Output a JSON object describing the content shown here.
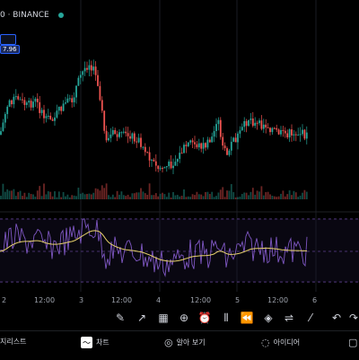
{
  "header": {
    "symbol_text": "0 · BINANCE",
    "badge_value": "7.96"
  },
  "toolbar": {
    "tools": [
      {
        "icon": "pencil-icon",
        "glyph": "✎"
      },
      {
        "icon": "trend-icon",
        "glyph": "↗"
      },
      {
        "icon": "grid-icon",
        "glyph": "▦"
      },
      {
        "icon": "plus-circle-icon",
        "glyph": "⊕"
      },
      {
        "icon": "clock-icon",
        "glyph": "⏰"
      },
      {
        "icon": "candles-icon",
        "glyph": "⫴"
      },
      {
        "icon": "rewind-icon",
        "glyph": "⏪"
      },
      {
        "icon": "layers-icon",
        "glyph": "◈"
      },
      {
        "icon": "sliders-icon",
        "glyph": "⇌"
      },
      {
        "icon": "brush-icon",
        "glyph": "⁄"
      },
      {
        "icon": "undo-icon",
        "glyph": "↶"
      },
      {
        "icon": "redo-icon",
        "glyph": "↷"
      }
    ]
  },
  "tabs": [
    {
      "label": "지리스트",
      "icon": "list-icon"
    },
    {
      "label": "차트",
      "icon": "chart-icon"
    },
    {
      "label": "알아 보기",
      "icon": "compass-icon"
    },
    {
      "label": "아이디어",
      "icon": "bulb-icon"
    }
  ],
  "xaxis": {
    "labels": [
      "2",
      "12:00",
      "3",
      "12:00",
      "4",
      "12:00",
      "5",
      "12:00",
      "6"
    ]
  },
  "colors": {
    "up": "#26a69a",
    "down": "#ef5350",
    "fast": "#7e57c2",
    "slow": "#e8d26b",
    "band": "#7e57c2"
  }
}
